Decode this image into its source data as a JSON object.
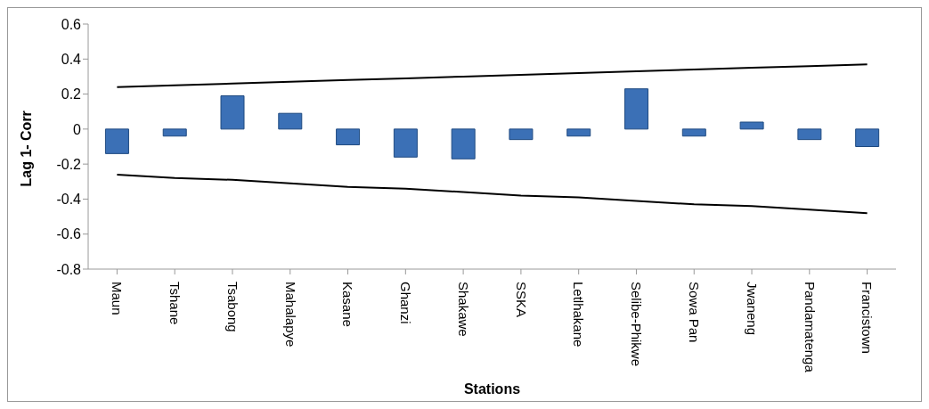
{
  "chart_data": {
    "type": "bar",
    "xlabel": "Stations",
    "ylabel": "Lag 1- Corr",
    "categories": [
      "Maun",
      "Tshane",
      "Tsabong",
      "Mahalapye",
      "Kasane",
      "Ghanzi",
      "Shakawe",
      "SSKA",
      "Letlhakane",
      "Selibe-Phikwe",
      "Sowa Pan",
      "Jwaneng",
      "Pandamatenga",
      "Francistown"
    ],
    "series": [
      {
        "color": "#3b70b6",
        "values": [
          -0.14,
          -0.04,
          0.19,
          0.09,
          -0.09,
          -0.16,
          -0.17,
          -0.06,
          -0.04,
          0.23,
          -0.04,
          0.04,
          -0.06,
          -0.1
        ]
      },
      {
        "type": "line",
        "color": "#000000",
        "values": [
          0.24,
          0.25,
          0.26,
          0.27,
          0.28,
          0.29,
          0.3,
          0.31,
          0.32,
          0.33,
          0.34,
          0.35,
          0.36,
          0.37
        ]
      },
      {
        "type": "line",
        "color": "#000000",
        "values": [
          -0.26,
          -0.28,
          -0.29,
          -0.31,
          -0.33,
          -0.34,
          -0.36,
          -0.38,
          -0.39,
          -0.41,
          -0.43,
          -0.44,
          -0.46,
          -0.48
        ]
      }
    ],
    "ylim": [
      -0.8,
      0.6
    ],
    "yticks": [
      -0.8,
      -0.6,
      -0.4,
      -0.2,
      0,
      0.2,
      0.4,
      0.6
    ],
    "legend": false,
    "marker": "none",
    "line_style": "solid"
  }
}
